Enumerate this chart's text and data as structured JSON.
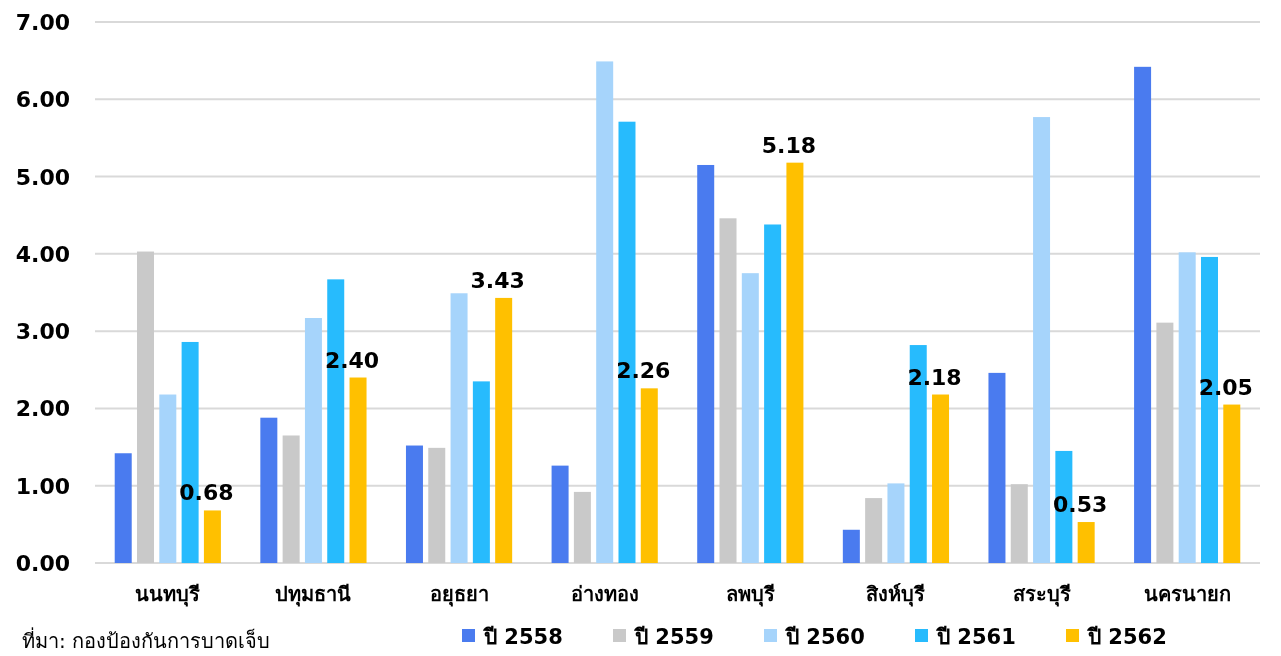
{
  "chart_data": {
    "type": "bar",
    "categories": [
      "นนทบุรี",
      "ปทุมธานี",
      "อยุธยา",
      "อ่างทอง",
      "ลพบุรี",
      "สิงห์บุรี",
      "สระบุรี",
      "นครนายก"
    ],
    "series": [
      {
        "name": "ปี 2558",
        "color": "#4a7bef",
        "values": [
          1.42,
          1.88,
          1.52,
          1.26,
          5.15,
          0.43,
          2.46,
          6.42
        ]
      },
      {
        "name": "ปี 2559",
        "color": "#c9c9c9",
        "values": [
          4.03,
          1.65,
          1.49,
          0.92,
          4.46,
          0.84,
          1.02,
          3.11
        ]
      },
      {
        "name": "ปี 2560",
        "color": "#a6d4fb",
        "values": [
          2.18,
          3.17,
          3.49,
          6.49,
          3.75,
          1.03,
          5.77,
          4.02
        ]
      },
      {
        "name": "ปี 2561",
        "color": "#27bbfd",
        "values": [
          2.86,
          3.67,
          2.35,
          5.71,
          4.38,
          2.82,
          1.45,
          3.96
        ]
      },
      {
        "name": "ปี 2562",
        "color": "#ffc000",
        "values": [
          0.68,
          2.4,
          3.43,
          2.26,
          5.18,
          2.18,
          0.53,
          2.05
        ],
        "value_labels": [
          "0.68",
          "2.40",
          "3.43",
          "2.26",
          "5.18",
          "2.18",
          "0.53",
          "2.05"
        ]
      }
    ],
    "ylim": [
      0,
      7
    ],
    "yticks": [
      {
        "value": 0,
        "label": "0.00"
      },
      {
        "value": 1,
        "label": "1.00"
      },
      {
        "value": 2,
        "label": "2.00"
      },
      {
        "value": 3,
        "label": "3.00"
      },
      {
        "value": 4,
        "label": "4.00"
      },
      {
        "value": 5,
        "label": "5.00"
      },
      {
        "value": 6,
        "label": "6.00"
      },
      {
        "value": 7,
        "label": "7.00"
      }
    ],
    "grid": "y",
    "legend": "bottom",
    "annotations": [
      "ที่มา: กองป้องกันการบาดเจ็บ"
    ]
  }
}
